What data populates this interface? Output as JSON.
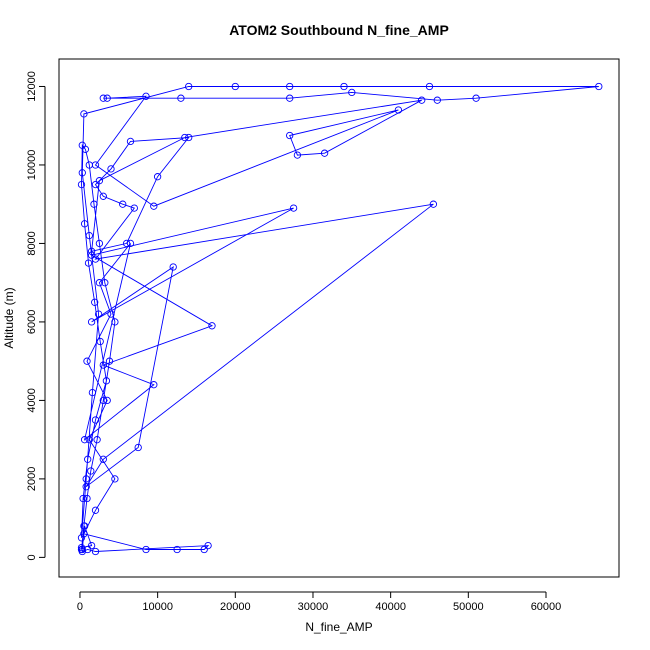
{
  "chart_data": {
    "type": "line",
    "title": "ATOM2 Southbound N_fine_AMP",
    "xlabel": "N_fine_AMP",
    "ylabel": "Altitude (m)",
    "xlim": [
      -2700,
      69400
    ],
    "ylim": [
      -500,
      12700
    ],
    "xticks": [
      0,
      10000,
      20000,
      30000,
      40000,
      50000,
      60000
    ],
    "yticks": [
      0,
      2000,
      4000,
      6000,
      8000,
      10000,
      12000
    ],
    "xtick_labels": [
      "0",
      "10000",
      "20000",
      "30000",
      "40000",
      "50000",
      "60000"
    ],
    "ytick_labels": [
      "0",
      "2000",
      "4000",
      "6000",
      "8000",
      "10000",
      "12000"
    ],
    "grid": false,
    "series": [
      {
        "color": "#0000ff",
        "marker": "open-circle",
        "x": [
          200,
          500,
          900,
          1400,
          2200,
          3000,
          3800,
          4500,
          3200,
          2500,
          1800,
          1200,
          700,
          300,
          200,
          600,
          1100,
          1900,
          2600,
          3400,
          2000,
          1000,
          400,
          200,
          800,
          1600,
          2400,
          1200,
          300,
          500,
          14000,
          20000,
          27000,
          34000,
          45000,
          66800,
          51000,
          46000,
          35000,
          27000,
          13000,
          3000,
          3500,
          8500,
          2000,
          9500,
          41000,
          27000,
          28000,
          31500,
          44000,
          13500,
          2500,
          1500,
          6000,
          10000,
          14000,
          6500,
          4000,
          2000,
          3000,
          5500,
          7000,
          2000,
          45500,
          3000,
          800,
          7500,
          12000,
          1500,
          27500,
          1500,
          17000,
          3000,
          9500,
          600,
          6500,
          2500,
          4000,
          900,
          3500,
          1200,
          4500,
          2000,
          500,
          8500,
          12500,
          16000,
          16500,
          2000,
          1000,
          300,
          200,
          1500,
          600,
          300
        ],
        "y": [
          200,
          800,
          1500,
          2200,
          3000,
          4000,
          5000,
          6000,
          7000,
          8000,
          9000,
          10000,
          10400,
          10500,
          9500,
          8500,
          7500,
          6500,
          5500,
          4500,
          3500,
          2500,
          1500,
          500,
          2000,
          4200,
          6200,
          8200,
          9800,
          11300,
          12000,
          12000,
          12000,
          12000,
          12000,
          12000,
          11700,
          11650,
          11850,
          11700,
          11700,
          11700,
          11700,
          11750,
          10000,
          8950,
          11400,
          10750,
          10250,
          10300,
          11650,
          10700,
          9600,
          7800,
          8000,
          9700,
          10700,
          10600,
          9900,
          9500,
          9200,
          9000,
          8900,
          7600,
          9000,
          2500,
          1800,
          2800,
          7400,
          6000,
          8900,
          7700,
          5900,
          4900,
          4400,
          3000,
          8000,
          7000,
          6200,
          5000,
          4000,
          3000,
          2000,
          1200,
          600,
          200,
          200,
          200,
          300,
          150,
          200,
          150,
          250,
          300,
          800,
          200
        ]
      }
    ]
  }
}
